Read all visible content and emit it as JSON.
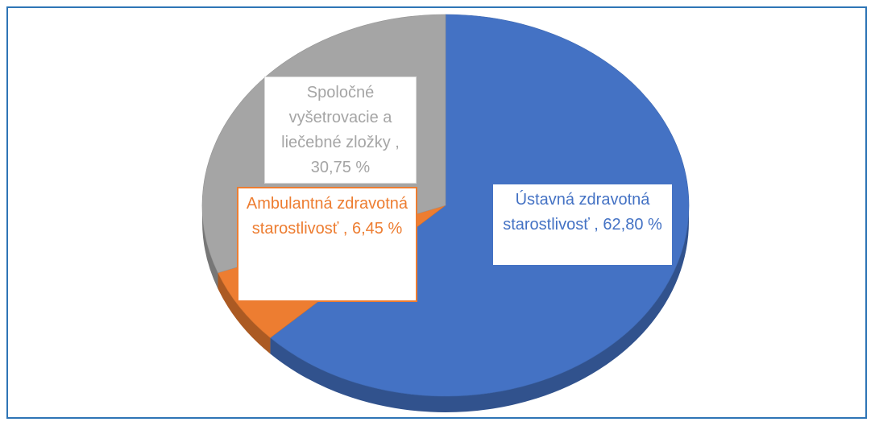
{
  "chart_data": {
    "type": "pie3d",
    "values": [
      62.8,
      6.45,
      30.75
    ],
    "value_labels": [
      "Ústavná zdravotná starostlivosť , 62,80 %",
      "Ambulantná zdravotná starostlivosť , 6,45 %",
      "Spoločné vyšetrovacie a liečebné zložky , 30,75 %"
    ],
    "colors": [
      "#4472c4",
      "#ed7d31",
      "#a5a5a5"
    ]
  }
}
